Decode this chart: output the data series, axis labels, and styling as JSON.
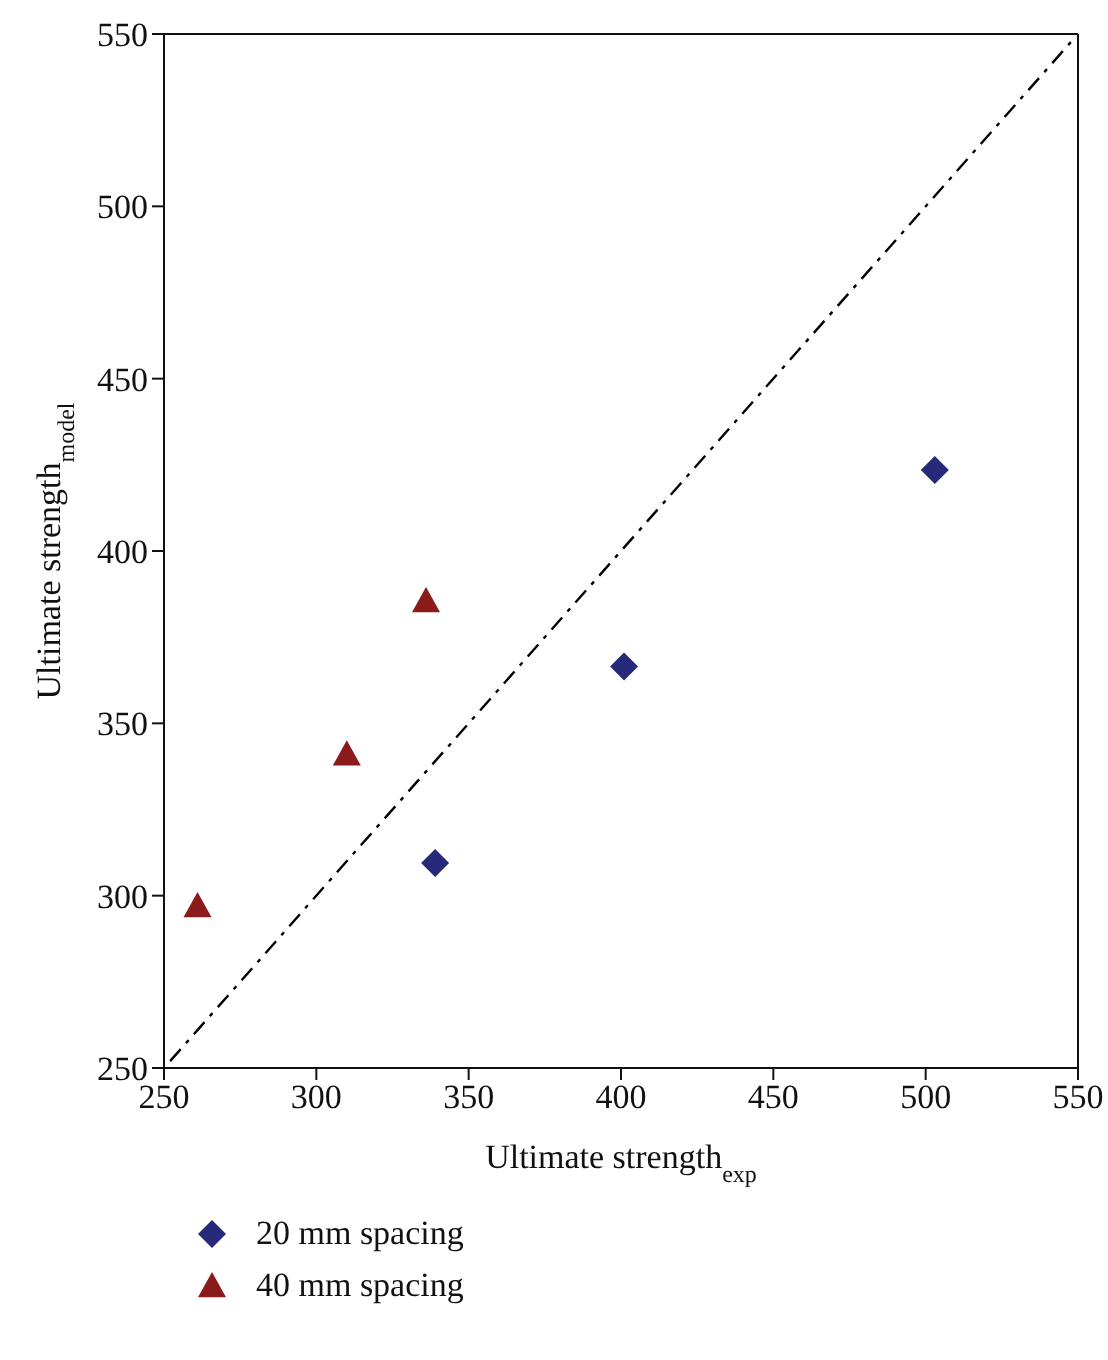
{
  "chart_data": {
    "type": "scatter",
    "xlabel": "Ultimate strength$_{exp}$",
    "ylabel": "Ultimate strength$_{model}$",
    "xlim": [
      250,
      550
    ],
    "xticks": [
      250,
      300,
      350,
      400,
      450,
      500,
      550
    ],
    "ylim": [
      250,
      550
    ],
    "yticks": [
      250,
      300,
      350,
      400,
      450,
      500,
      550
    ],
    "legend": "bottom",
    "series": [
      {
        "name": "20 mm spacing",
        "color": "#262a78",
        "marker": "diamond",
        "x": [
          339,
          401,
          503
        ],
        "values": [
          309.5,
          366.5,
          423.5
        ]
      },
      {
        "name": "40 mm spacing",
        "color": "#8b1a1a",
        "marker": "triangle",
        "x": [
          261,
          310,
          336
        ],
        "values": [
          297,
          341,
          385.5
        ]
      },
      {
        "type": "line",
        "color": "#000000",
        "line_style": "dashed",
        "marker": "none",
        "x": [
          252,
          548
        ],
        "values": [
          252,
          548
        ]
      }
    ]
  }
}
